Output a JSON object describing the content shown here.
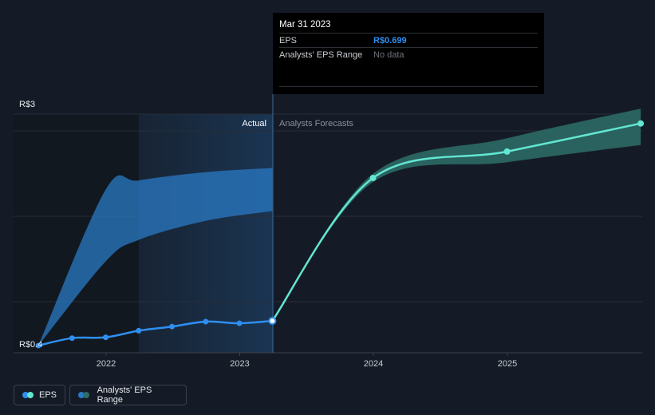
{
  "tooltip": {
    "date": "Mar 31 2023",
    "eps_label": "EPS",
    "eps_value": "R$0.699",
    "range_label": "Analysts' EPS Range",
    "range_value": "No data"
  },
  "legend": {
    "eps_label": "EPS",
    "range_label": "Analysts' EPS Range"
  },
  "colors": {
    "actual_line": "#2e8ff0",
    "forecast_line": "#63e6d2",
    "forecast_band": "#2d6e68",
    "past_band": "#2a79c4",
    "background": "#151b26"
  },
  "chart_data": {
    "type": "line",
    "title": "",
    "xlabel": "",
    "ylabel": "",
    "y_axis_labels": [
      "R$3",
      "R$0.4"
    ],
    "x_tick_labels": [
      "2022",
      "2023",
      "2024",
      "2025"
    ],
    "section_labels": {
      "actual": "Actual",
      "forecast": "Analysts Forecasts"
    },
    "ylim": [
      0.4,
      3.0
    ],
    "grid": true,
    "legend_position": "bottom-left",
    "series": [
      {
        "name": "EPS",
        "x": [
          "2021-06-30",
          "2021-09-30",
          "2021-12-31",
          "2022-03-31",
          "2022-06-30",
          "2022-09-30",
          "2022-12-31",
          "2023-03-31"
        ],
        "values": [
          0.4,
          0.49,
          0.5,
          0.58,
          0.63,
          0.69,
          0.67,
          0.699
        ]
      },
      {
        "name": "EPS",
        "x": [
          "2023-03-31",
          "2023-12-31",
          "2024-12-31",
          "2025-12-31"
        ],
        "values": [
          0.699,
          2.43,
          2.75,
          3.09
        ]
      },
      {
        "name": "Analysts' EPS Range",
        "x": [
          "2023-03-31",
          "2023-12-31",
          "2024-12-31",
          "2025-12-31"
        ],
        "low": [
          0.699,
          2.38,
          2.62,
          2.83
        ],
        "high": [
          0.699,
          2.48,
          2.91,
          3.27
        ]
      }
    ],
    "past_forecast_band": {
      "x": [
        "2021-06-30",
        "2021-12-31",
        "2022-03-31",
        "2022-09-30",
        "2023-03-31"
      ],
      "low": [
        0.4,
        1.42,
        1.68,
        1.91,
        2.03
      ],
      "high": [
        0.4,
        2.29,
        2.4,
        2.5,
        2.55
      ]
    }
  }
}
